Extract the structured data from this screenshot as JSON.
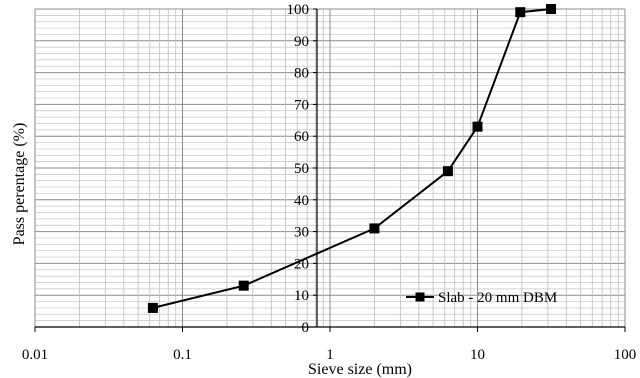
{
  "chart_data": {
    "type": "scatter",
    "x_scale": "log",
    "y_scale": "linear",
    "xlabel": "Sieve size (mm)",
    "ylabel": "Pass perentage (%)",
    "xlim": [
      0.01,
      100
    ],
    "ylim": [
      0,
      100
    ],
    "x_ticks": [
      "0.01",
      "0.1",
      "1",
      "10",
      "100"
    ],
    "y_ticks": [
      "0",
      "10",
      "20",
      "30",
      "40",
      "50",
      "60",
      "70",
      "80",
      "90",
      "100"
    ],
    "grid": true,
    "legend_position": "bottom-right",
    "series": [
      {
        "name": "Slab - 20 mm DBM",
        "color": "#000000",
        "marker": "square",
        "x": [
          0.063,
          0.26,
          2,
          6.3,
          10,
          19.5,
          31.5
        ],
        "y": [
          6,
          13,
          31,
          49,
          63,
          99,
          100
        ]
      }
    ]
  }
}
